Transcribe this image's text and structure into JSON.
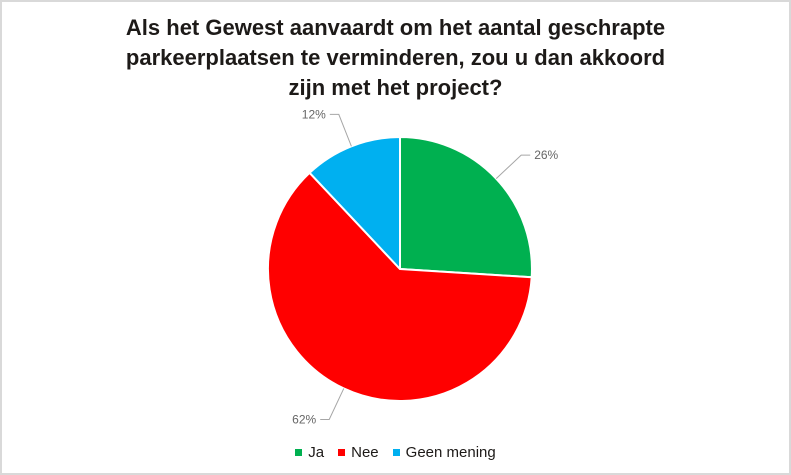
{
  "window": {
    "background_color": "#ffffff",
    "border_color": "#d9d9d9"
  },
  "chart_data": {
    "type": "pie",
    "title": "Als het Gewest aanvaardt om het aantal geschrapte parkeerplaatsen te verminderen, zou u dan akkoord zijn met het project?",
    "slices": [
      {
        "label": "Ja",
        "value": 26,
        "display": "26%",
        "color": "#00B050"
      },
      {
        "label": "Nee",
        "value": 62,
        "display": "62%",
        "color": "#FF0000"
      },
      {
        "label": "Geen mening",
        "value": 12,
        "display": "12%",
        "color": "#00B0F0"
      }
    ],
    "start_angle_deg": 0,
    "direction": "clockwise",
    "slice_separator_color": "#ffffff",
    "data_labels": "outside-with-leader-lines",
    "label_text_color": "#666666",
    "leader_line_color": "#a6a6a6",
    "legend_position": "bottom",
    "title_color": "#1d1a18"
  }
}
